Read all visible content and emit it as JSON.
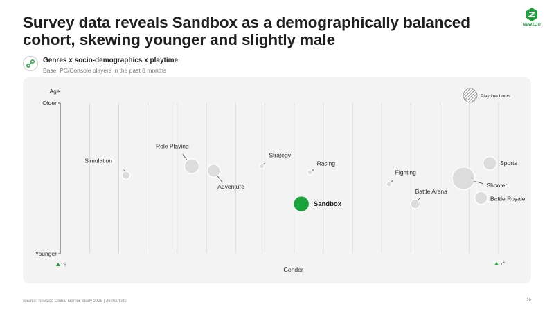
{
  "header": {
    "title": "Survey data reveals Sandbox as a demographically balanced cohort, skewing younger and slightly male",
    "logo_text": "NEWZOO",
    "logo_icon": "newzoo-logo-icon"
  },
  "subheader": {
    "icon": "link-icon",
    "title": "Genres x socio-demographics x playtime",
    "base": "Base: PC/Console players in the past 6 months"
  },
  "footer": {
    "source": "Source: Newzoo Global Gamer Study 2025 | 36 markets",
    "page_number": "29"
  },
  "colors": {
    "accent": "#1aa33a",
    "bubble": "#dcdcdc",
    "bubble_stroke": "#ffffff",
    "panel": "#f3f3f3",
    "grid": "#d5d5d5"
  },
  "chart_data": {
    "type": "scatter",
    "title": "",
    "xlabel": "Gender",
    "ylabel": "Age",
    "y_top_label": "Older",
    "y_bottom_label": "Younger",
    "x_left_symbol": "♀",
    "x_right_symbol": "♂",
    "legend": {
      "label": "Playtime hours",
      "placement": "top-right"
    },
    "grid": true,
    "x_gridlines": 15,
    "xlim": [
      0,
      100
    ],
    "ylim": [
      0,
      100
    ],
    "series": [
      {
        "points": [
          {
            "label": "Simulation",
            "x": 15,
            "y": 52,
            "size": 3.5,
            "highlight": false
          },
          {
            "label": "Role Playing",
            "x": 30,
            "y": 58,
            "size": 12,
            "highlight": false
          },
          {
            "label": "Adventure",
            "x": 35,
            "y": 55,
            "size": 9,
            "highlight": false
          },
          {
            "label": "Strategy",
            "x": 46,
            "y": 58,
            "size": 1.2,
            "highlight": false
          },
          {
            "label": "Racing",
            "x": 57,
            "y": 54,
            "size": 1.4,
            "highlight": false
          },
          {
            "label": "Sandbox",
            "x": 55,
            "y": 33,
            "size": 12,
            "highlight": true
          },
          {
            "label": "Fighting",
            "x": 75,
            "y": 46,
            "size": 1.4,
            "highlight": false
          },
          {
            "label": "Battle Arena",
            "x": 81,
            "y": 33,
            "size": 5,
            "highlight": false
          },
          {
            "label": "Shooter",
            "x": 92,
            "y": 50,
            "size": 28,
            "highlight": false
          },
          {
            "label": "Sports",
            "x": 98,
            "y": 60,
            "size": 10,
            "highlight": false
          },
          {
            "label": "Battle Royale",
            "x": 96,
            "y": 37,
            "size": 9,
            "highlight": false
          }
        ]
      }
    ]
  }
}
